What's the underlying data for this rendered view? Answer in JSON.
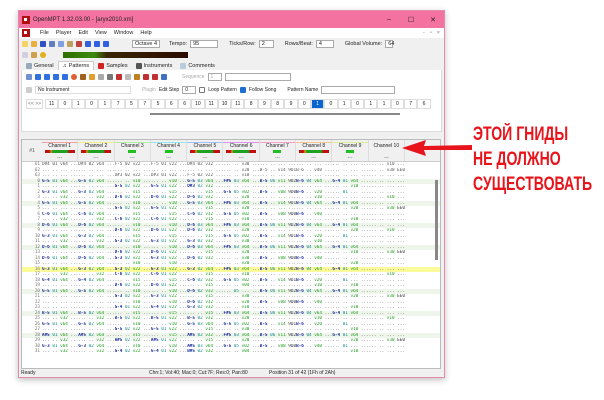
{
  "window": {
    "title": "OpenMPT 1.32.03.00 - [aryx2010.xm]",
    "minimize": "–",
    "maximize": "☐",
    "close": "✕"
  },
  "menu": [
    "File",
    "Player",
    "Edit",
    "View",
    "Window",
    "Help"
  ],
  "toolbar": {
    "octave": "Octave 4",
    "tempo_label": "Tempo:",
    "tempo": "95",
    "ticks_label": "Ticks/Row:",
    "ticks": "2",
    "rpb_label": "Rows/Beat:",
    "rpb": "4",
    "gv_label": "Global Volume:",
    "gv": "64"
  },
  "tabs": [
    "General",
    "Patterns",
    "Samples",
    "Instruments",
    "Comments"
  ],
  "pattern_toolbar": {
    "sequence_label": "Sequence",
    "sequence": "1",
    "instrument": "No Instrument",
    "plugin": "Plugin",
    "edit_step_label": "Edit Step",
    "edit_step": "0",
    "loop_pattern": "Loop Pattern",
    "follow_song": "Follow Song",
    "pattern_name_label": "Pattern Name",
    "nav": "<< >>"
  },
  "orders": [
    "11",
    "0",
    "1",
    "0",
    "1",
    "7",
    "5",
    "7",
    "5",
    "6",
    "6",
    "10",
    "11",
    "10",
    "11",
    "8",
    "9",
    "8",
    "9",
    "0",
    "1",
    "0",
    "1",
    "0",
    "1",
    "1",
    "0",
    "7",
    "6"
  ],
  "selected_order": 20,
  "grid": {
    "pattern_label": "#1",
    "header_dash": "---",
    "channels": [
      {
        "name": "Channel 1",
        "color": "#f4a0a0"
      },
      {
        "name": "Channel 2",
        "color": "#f4f080"
      },
      {
        "name": "Channel 3",
        "color": "#b0f0a0"
      },
      {
        "name": "Channel 4",
        "color": "#90e8f0"
      },
      {
        "name": "Channel 5",
        "color": "#a0c0f8"
      },
      {
        "name": "Channel 6",
        "color": "#e090f0"
      },
      {
        "name": "Channel 7",
        "color": "#f8a0c8"
      },
      {
        "name": "Channel 8",
        "color": "#f8c890"
      },
      {
        "name": "Channel 9",
        "color": "#d8f090"
      },
      {
        "name": "Channel 10",
        "color": "#f0f0f0"
      }
    ],
    "rows": [
      [
        "61",
        "D#4 01 v64 ...|D#4 02 v64 ...|F-5 02 v22 ...|F-5 01 v22 ...|D#4 02 v32 ...|... .. v30 ...|... .. ... ...|... .. ... ...|... .. ... ...|... .. v10 ..."
      ],
      [
        "62",
        "... .. ... ...|... .. ... ...|... .. ... ...|... .. ... ...|... .. ... ...|... .. v20 ...|B-5 .. v14 9D1|B-6 .. v40 ...|... .. ... ...|... .. v30 EE0"
      ],
      [
        "63",
        "... .. ... ...|... .. ... ...|D#3 02 v22 ...|D#3 01 v22 ...|F-5 02 v22 ...|... .. v10 ...|... .. ... ...|... .. ... ...|... .. ... ...|... .. ... ..."
      ],
      [
        "0",
        "G-5 01 v64 ...|G-5 02 v64 ...|... .. v10 ...|... .. v10 ...|G-5 03 v64 ...|F#5 03 v64 ...|B-5 06 v11 9D2|B-6 04 v64 ...|G-4 01 v64 ...|... .. ... ..."
      ],
      [
        "1",
        "... .. ... ...|... .. ... ...|G-5 02 v22 ...|G-5 01 v22 ...|D#3 02 v32 ...|... .. ... ...|... .. ... ...|... .. ... ...|... .. v10 ...|... .. ... ..."
      ],
      [
        "2",
        "G-3 01 v64 ...|G-3 02 v64 ...|... .. v15 ...|... .. v15 ...|... .. v15 ...|G-5 05 v02 ...|B-5 .. v08 9D0|B-6 .. v20 ...|... 01 ... ...|... .. ... ..."
      ],
      [
        "3",
        "... .. v32 ...|... .. v32 ...|D-6 02 v22 ...|D-6 01 v22 ...|D-6 02 v32 ...|... .. v20 ...|... .. ... ...|... .. v10 ...|... .. ... ...|... .. v10 ..."
      ],
      [
        "4",
        "G-5 01 v64 ...|G-5 02 v64 ...|... .. v10 ...|... .. v10 ...|G-5 03 v64 ...|F#5 03 v64 ...|B-5 .. v14 9D1|B-6 04 v64 ...|G-4 01 v64 ...|... .. ... ..."
      ],
      [
        "5",
        "... .. ... ...|... .. ... ...|G-5 02 v22 ...|G-5 01 v22 ...|... .. v15 ...|... .. v20 ...|... .. ... ...|... .. ... ...|... .. v20 ...|... .. v30 EE0"
      ],
      [
        "6",
        "C-6 01 v64 ...|C-6 02 v64 ...|... .. v15 ...|... .. v15 ...|C-6 02 v32 ...|G-5 05 v02 ...|B-5 .. v08 9D0|B-6 .. v40 ...|... .. ... ...|... .. ... ..."
      ],
      [
        "7",
        "... .. v32 ...|... .. v32 ...|C-6 02 v22 ...|C-6 01 v22 ...|... .. v15 ...|... .. v10 ...|... .. ... ...|... .. ... ...|... .. v10 ...|... .. ... ..."
      ],
      [
        "8",
        "D-6 01 v64 ...|D-6 02 v64 ...|... .. v10 ...|... .. v10 ...|D-6 03 v64 ...|F#5 03 v64 ...|B-5 06 v11 9D2|B-6 04 v64 ...|G-4 01 v64 ...|... .. ... ..."
      ],
      [
        "9",
        "... .. ... ...|... .. ... ...|D-6 02 v22 ...|D-6 01 v22 ...|D-6 02 v32 ...|... .. v20 ...|... .. ... ...|... .. ... ...|... .. v20 ...|... .. v10 ..."
      ],
      [
        "10",
        "G-3 01 v64 ...|G-3 02 v64 ...|... .. v15 ...|... .. v15 ...|... .. v15 ...|G-5 05 v02 ...|B-5 .. v14 9D1|B-6 .. v20 ...|... 01 ... ...|... .. ... ..."
      ],
      [
        "11",
        "... .. v32 ...|... .. v32 ...|G-3 02 v22 ...|G-3 01 v22 ...|G-3 02 v32 ...|... .. v30 ...|... .. ... ...|... .. v10 ...|... .. ... ...|... .. ... ..."
      ],
      [
        "12",
        "D-6 01 v64 ...|D-6 02 v64 ...|... .. v10 ...|... .. v10 ...|D-6 03 v64 ...|F#5 03 v64 ...|B-5 06 v11 9D2|B-6 04 v64 ...|G-4 01 v64 ...|... .. ... ..."
      ],
      [
        "13",
        "... .. ... ...|... .. ... ...|D-6 02 v22 ...|D-6 01 v22 ...|... .. v15 ...|... .. v20 ...|... .. ... ...|... .. ... ...|... .. v10 ...|... .. v30 EE0"
      ],
      [
        "14",
        "D-6 01 v64 ...|D-6 02 v64 ...|G-3 02 v22 ...|G-3 01 v22 ...|D-6 02 v32 ...|... .. v30 ...|B-5 .. v08 9D0|B-6 .. v40 ...|... .. ... ...|... .. ... ..."
      ],
      [
        "15",
        "... .. ... ...|... .. ... ...|... .. v10 ...|... .. v10 ...|... .. ... ...|... .. v20 ...|... .. ... ...|... .. ... ...|... .. v20 ...|... .. ... ..."
      ],
      [
        "16",
        "G-3 01 v64 ...|G-3 02 v64 ...|G-3 02 v22 ...|G-3 01 v22 ...|G-3 02 v64 ...|F#5 03 v64 ...|B-5 06 v11 9D2|B-6 04 v64 ...|G-4 01 v64 ...|... .. ... ..."
      ],
      [
        "17",
        "... .. v32 ...|... .. v32 ...|C-6 02 v22 ...|C-6 01 v22 ...|... .. v15 ...|... .. v10 ...|... .. ... ...|... .. ... ...|... .. ... ...|... .. v10 ..."
      ],
      [
        "18",
        "G-4 01 v64 ...|G-4 02 v64 ...|... .. v15 ...|... .. v15 ...|C-6 02 v32 ...|G-5 05 v02 ...|B-5 .. v14 9D1|B-6 .. v20 ...|... 01 ... ...|... .. ... ..."
      ],
      [
        "19",
        "... .. ... ...|... .. ... ...|D-6 02 v22 ...|D-6 01 v22 ...|... .. v15 ...|... .. v04 ...|... .. ... ...|... .. v10 ...|... .. v10 ...|... .. ... ..."
      ],
      [
        "20",
        "G-5 01 v64 ...|G-5 02 v64 ...|... .. v10 ...|... .. v10 ...|D-6 02 v32 ...|... 05 ... ...|B-5 06 v11 9D2|B-6 04 v64 ...|G-4 01 v64 ...|... .. ... ..."
      ],
      [
        "21",
        "... .. ... ...|... .. ... ...|G-3 02 v22 ...|G-3 01 v22 ...|... .. v15 ...|... .. v30 ...|... .. ... ...|... .. ... ...|... .. v20 ...|... .. v30 EE0"
      ],
      [
        "22",
        "... .. ... ...|... .. ... ...|... .. v10 ...|... .. v10 ...|D-6 02 v32 ...|... .. v20 ...|B-5 .. v08 9D0|B-6 .. v40 ...|... .. ... ...|... .. ... ..."
      ],
      [
        "23",
        "... .. ... ...|... .. ... ...|G-4 01 v22 ...|G-4 01 v22 ...|G-3 02 v32 ...|... .. v10 ...|... .. ... ...|... .. ... ...|... .. v10 ...|... .. ... ..."
      ],
      [
        "24",
        "B-5 01 v64 ...|B-5 02 v64 ...|... .. v15 ...|... .. v15 ...|... .. v15 ...|F#5 03 v64 ...|B-5 06 v11 9D2|B-6 04 v64 ...|G-4 01 v64 ...|... .. ... ..."
      ],
      [
        "25",
        "... .. v32 ...|... .. v32 ...|B-5 02 v22 ...|B-5 01 v22 ...|B-5 02 v32 ...|... .. v20 ...|... .. ... ...|... .. v10 ...|... .. ... ...|... .. v10 ..."
      ],
      [
        "26",
        "G-5 01 v64 ...|G-5 02 v64 ...|... .. v10 ...|... .. v10 ...|G-5 03 v64 ...|G-5 05 v02 ...|B-5 .. v14 9D1|B-6 .. v20 ...|... 01 ... ...|... .. ... ..."
      ],
      [
        "27",
        "... .. ... ...|... .. ... ...|G-5 02 v22 ...|G-5 01 v22 ...|... .. v15 ...|... .. v30 ...|... .. ... ...|... .. ... ...|... .. v10 ...|... .. ... ..."
      ],
      [
        "28",
        "A#5 01 v64 ...|A#5 02 v64 ...|... .. v15 ...|... .. v15 ...|A#5 02 v32 ...|F#5 03 v64 ...|B-5 06 v11 9D2|B-6 04 v64 ...|G-4 01 v64 ...|... .. ... ..."
      ],
      [
        "29",
        "... .. v32 ...|... .. v32 ...|A#5 02 v22 ...|A#5 01 v22 ...|... .. v15 ...|... .. v20 ...|... .. ... ...|... .. ... ...|... .. v20 ...|... .. v30 EE0"
      ],
      [
        "30",
        "G-3 01 v64 ...|G-3 02 v64 ...|... .. v10 ...|... .. v10 ...|A#5 03 v64 ...|G-5 05 v02 ...|B-5 .. v08 9D0|B-6 .. v40 ...|... 01 ... ...|... .. ... ..."
      ],
      [
        "31",
        "... .. v32 ...|... .. v32 ...|G-4 02 v22 ...|G-4 01 v22 ...|B#5 02 v32 ...|... .. v04 ...|... .. ... ...|... .. ... ...|... .. v10 ...|... .. ... ..."
      ]
    ],
    "highlight_row": "16"
  },
  "status": {
    "left": "Ready",
    "info": "Chn:1; Vol:40; Mac:0; Cut:7F; Res:0; Pan:80",
    "position": "Position 31 of 42 (1Fh of 2Ah)"
  },
  "annotation": {
    "lines": [
      "ЭТОЙ ГНИДЫ",
      "НЕ ДОЛЖНО",
      "СУЩЕСТВОВАТЬ"
    ],
    "color": "#e8141c"
  }
}
